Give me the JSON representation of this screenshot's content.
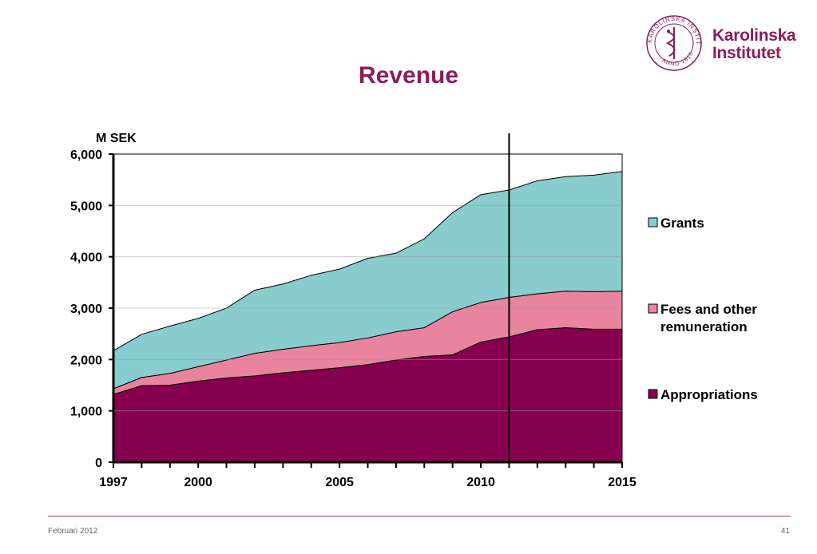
{
  "header": {
    "title": "Revenue",
    "logo_line1": "Karolinska",
    "logo_line2": "Institutet",
    "seal_text": "KAROLINSKA INSTITUTET ANNO 1810"
  },
  "footer": {
    "date": "Februari 2012",
    "page": "41"
  },
  "chart_data": {
    "type": "area",
    "stacked": true,
    "unit_label": "M SEK",
    "title": "Revenue",
    "x": [
      1997,
      1998,
      1999,
      2000,
      2001,
      2002,
      2003,
      2004,
      2005,
      2006,
      2007,
      2008,
      2009,
      2010,
      2011,
      2012,
      2013,
      2014,
      2015
    ],
    "x_tick_labels": [
      "1997",
      "2000",
      "2005",
      "2010",
      "2015"
    ],
    "y_tick_labels": [
      "0",
      "1,000",
      "2,000",
      "3,000",
      "4,000",
      "5,000",
      "6,000"
    ],
    "ylim": [
      0,
      6000
    ],
    "grid": "horizontal",
    "legend_position": "right",
    "divider_year": 2011,
    "series": [
      {
        "name": "Appropriations",
        "color": "#870050",
        "values": [
          1320,
          1490,
          1500,
          1580,
          1640,
          1680,
          1740,
          1790,
          1840,
          1900,
          1990,
          2060,
          2090,
          2340,
          2440,
          2580,
          2620,
          2590,
          2590
        ]
      },
      {
        "name": "Fees and other remuneration",
        "color": "#e8849e",
        "values": [
          110,
          160,
          230,
          280,
          350,
          440,
          460,
          480,
          490,
          520,
          550,
          560,
          840,
          770,
          770,
          700,
          710,
          730,
          740
        ]
      },
      {
        "name": "Grants",
        "color": "#88ccce",
        "values": [
          740,
          840,
          920,
          940,
          1010,
          1230,
          1270,
          1370,
          1430,
          1550,
          1530,
          1730,
          1930,
          2100,
          2090,
          2200,
          2230,
          2270,
          2330
        ]
      }
    ]
  }
}
